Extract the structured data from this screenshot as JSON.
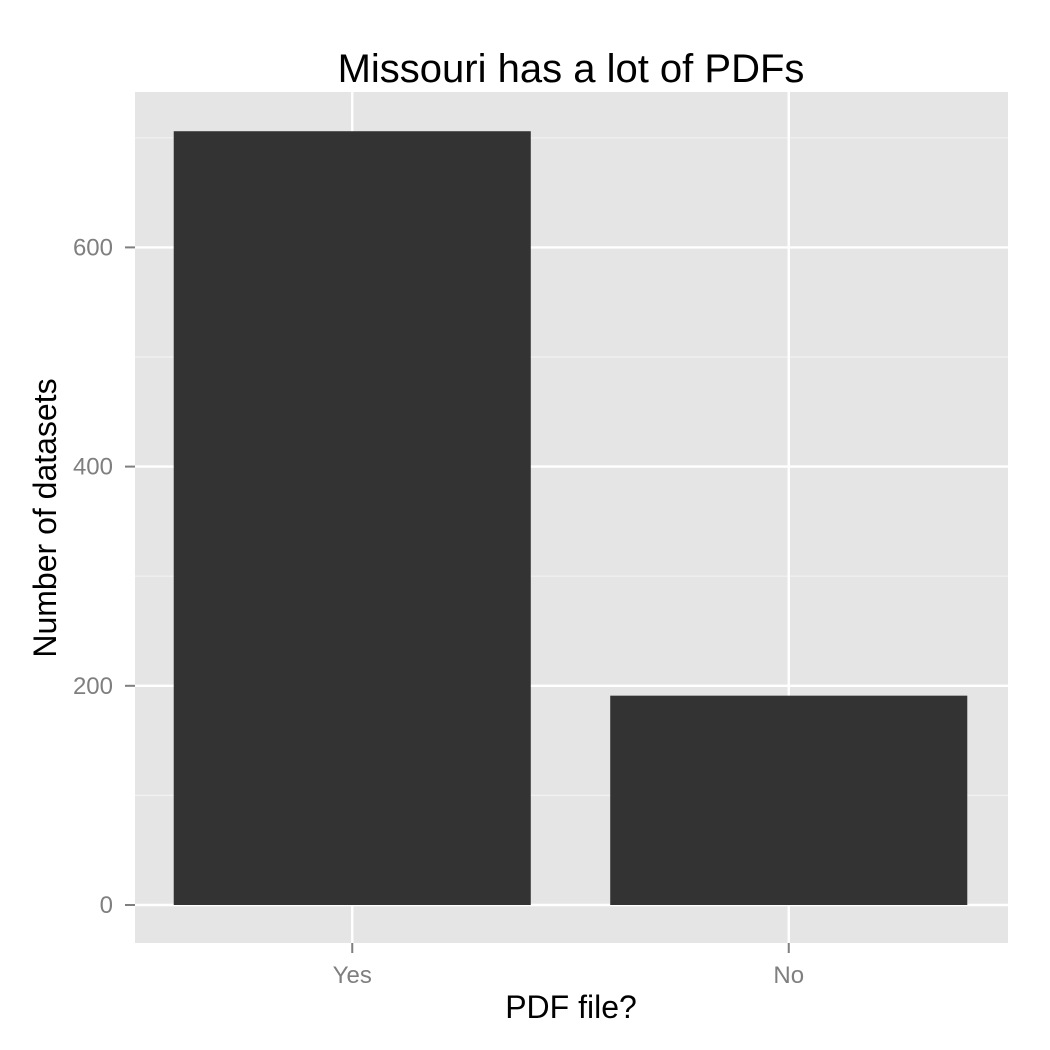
{
  "chart_data": {
    "type": "bar",
    "title": "Missouri has a lot of PDFs",
    "xlabel": "PDF file?",
    "ylabel": "Number of datasets",
    "categories": [
      "Yes",
      "No"
    ],
    "values": [
      706,
      191
    ],
    "ylim": [
      -35,
      745
    ],
    "yticks": [
      0,
      200,
      400,
      600
    ],
    "ytick_labels": [
      "0",
      "200",
      "400",
      "600"
    ],
    "grid": true,
    "legend": "none",
    "colors": {
      "bar": "#333333",
      "panel": "#e5e5e5",
      "grid_major": "#ffffff",
      "grid_minor": "#f2f2f2",
      "tick_text": "#7f7f7f",
      "tick_mark": "#7f7f7f"
    }
  }
}
